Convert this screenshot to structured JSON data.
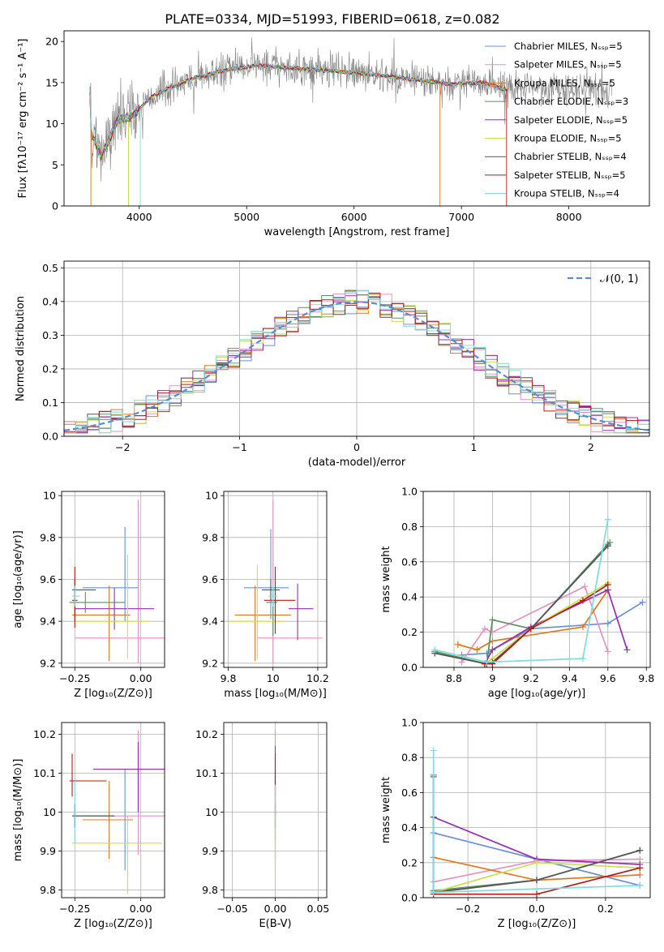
{
  "colors": [
    "#6a8fd8",
    "#e791c2",
    "#e2781e",
    "#5d8f62",
    "#9a2bb3",
    "#c8e04a",
    "#555555",
    "#b51a1a",
    "#7fdcdc"
  ],
  "chart_data": [
    {
      "id": "spectrum",
      "type": "line",
      "title": "PLATE=0334, MJD=51993, FIBERID=0618, z=0.082",
      "xlabel": "wavelength [Angstrom, rest frame]",
      "ylabel": "Flux [fλ10⁻¹⁷ erg cm⁻² s⁻¹ A⁻¹]",
      "xlim": [
        3300,
        8750
      ],
      "ylim": [
        0,
        21.3
      ],
      "xticks": [
        4000,
        5000,
        6000,
        7000,
        8000
      ],
      "yticks": [
        0,
        5,
        10,
        15,
        20
      ],
      "grid": false,
      "legend_position": "top-right",
      "legend": [
        "Chabrier MILES, Nₛₛₚ=5",
        "Salpeter MILES, Nₛₛₚ=5",
        "Kroupa MILES, Nₛₛₚ=5",
        "Chabrier ELODIE, Nₛₛₚ=3",
        "Salpeter ELODIE, Nₛₛₚ=5",
        "Kroupa ELODIE, Nₛₛₚ=5",
        "Chabrier STELIB, Nₛₛₚ=4",
        "Salpeter STELIB, Nₛₛₚ=5",
        "Kroupa STELIB, Nₛₛₚ=4"
      ],
      "continuum": {
        "x": [
          3550,
          3650,
          3800,
          3950,
          4100,
          4300,
          4500,
          4800,
          5100,
          5400,
          5700,
          6000,
          6300,
          6600,
          6900,
          7200,
          7400
        ],
        "y": [
          9,
          6,
          10.5,
          11,
          13.2,
          14.5,
          15.5,
          16.5,
          17.1,
          16.8,
          16.5,
          16.2,
          15.8,
          15.3,
          14.8,
          15,
          14.2
        ]
      }
    },
    {
      "id": "residual_hist",
      "type": "histogram",
      "xlabel": "(data-model)/error",
      "ylabel": "Normed distribution",
      "xlim": [
        -2.5,
        2.5
      ],
      "ylim": [
        0,
        0.52
      ],
      "xticks": [
        -2,
        -1,
        0,
        1,
        2
      ],
      "yticks": [
        0,
        0.1,
        0.2,
        0.3,
        0.4,
        0.5
      ],
      "grid": true,
      "legend": [
        "𝒩(0, 1)"
      ],
      "legend_position": "top-right",
      "bin_width": 0.1
    },
    {
      "id": "age_vs_Z",
      "type": "errorbar",
      "xlabel": "Z [log₁₀(Z/Z⊙)]",
      "ylabel": "age  [log₁₀(age/yr)]",
      "xlim": [
        -0.3,
        0.09
      ],
      "ylim": [
        9.18,
        10.02
      ],
      "xticks": [
        -0.25,
        0.0
      ],
      "xticklabels": [
        "−0.25",
        "0.00"
      ],
      "yticks": [
        9.2,
        9.4,
        9.6,
        9.8,
        10.0
      ],
      "grid": true,
      "points": [
        {
          "x": -0.06,
          "y": 9.56,
          "xerr": [
            0.16,
            0.05
          ],
          "yerr": [
            0.16,
            0.29
          ]
        },
        {
          "x": -0.01,
          "y": 9.32,
          "xerr": [
            0.24,
            0.15
          ],
          "yerr": [
            0.12,
            0.66
          ]
        },
        {
          "x": -0.12,
          "y": 9.43,
          "xerr": [
            0.14,
            0.08
          ],
          "yerr": [
            0.22,
            0.14
          ]
        },
        {
          "x": -0.21,
          "y": 9.49,
          "xerr": [
            0.06,
            0.15
          ],
          "yerr": [
            0.05,
            0.05
          ]
        },
        {
          "x": -0.1,
          "y": 9.46,
          "xerr": [
            0.15,
            0.15
          ],
          "yerr": [
            0.1,
            0.1
          ]
        },
        {
          "x": -0.05,
          "y": 9.4,
          "xerr": [
            0.2,
            0.08
          ],
          "yerr": [
            0.18,
            0.32
          ]
        },
        {
          "x": -0.25,
          "y": 9.55,
          "xerr": [
            0.01,
            0.08
          ],
          "yerr": [
            0.15,
            0.05
          ]
        },
        {
          "x": -0.25,
          "y": 9.5,
          "xerr": [
            0.01,
            0.01
          ],
          "yerr": [
            0.13,
            0.16
          ]
        },
        {
          "x": -0.25,
          "y": 9.52,
          "xerr": [
            0.01,
            0.02
          ],
          "yerr": [
            0.05,
            0.05
          ]
        }
      ]
    },
    {
      "id": "age_vs_mass",
      "type": "errorbar",
      "xlabel": "mass [log₁₀(M/M⊙)]",
      "ylabel": "",
      "xlim": [
        9.78,
        10.24
      ],
      "ylim": [
        9.18,
        10.02
      ],
      "xticks": [
        9.8,
        10.0,
        10.2
      ],
      "yticks": [
        9.2,
        9.4,
        9.6,
        9.8,
        10.0
      ],
      "grid": true,
      "points": [
        {
          "x": 9.99,
          "y": 9.56,
          "xerr": [
            0.12,
            0.08
          ],
          "yerr": [
            0.15,
            0.28
          ]
        },
        {
          "x": 10.0,
          "y": 9.32,
          "xerr": [
            0.07,
            0.22
          ],
          "yerr": [
            0.12,
            0.66
          ]
        },
        {
          "x": 9.92,
          "y": 9.43,
          "xerr": [
            0.09,
            0.16
          ],
          "yerr": [
            0.22,
            0.14
          ]
        },
        {
          "x": 10.0,
          "y": 9.49,
          "xerr": [
            0.03,
            0.02
          ],
          "yerr": [
            0.16,
            0.07
          ]
        },
        {
          "x": 10.11,
          "y": 9.46,
          "xerr": [
            0.04,
            0.07
          ],
          "yerr": [
            0.15,
            0.12
          ]
        },
        {
          "x": 9.93,
          "y": 9.4,
          "xerr": [
            0.13,
            0.12
          ],
          "yerr": [
            0.18,
            0.27
          ]
        },
        {
          "x": 9.99,
          "y": 9.55,
          "xerr": [
            0.04,
            0.04
          ],
          "yerr": [
            0.05,
            0.05
          ]
        },
        {
          "x": 10.01,
          "y": 9.5,
          "xerr": [
            0.05,
            0.09
          ],
          "yerr": [
            0.16,
            0.16
          ]
        },
        {
          "x": 10.0,
          "y": 9.52,
          "xerr": [
            0.02,
            0.02
          ],
          "yerr": [
            0.05,
            0.05
          ]
        }
      ]
    },
    {
      "id": "weight_vs_age",
      "type": "line",
      "xlabel": "age  [log₁₀(age/yr)]",
      "ylabel": "mass weight",
      "xlim": [
        8.64,
        9.82
      ],
      "ylim": [
        0,
        1.0
      ],
      "xticks": [
        8.8,
        9.0,
        9.2,
        9.4,
        9.6,
        9.8
      ],
      "yticks": [
        0,
        0.2,
        0.4,
        0.6,
        0.8,
        1.0
      ],
      "grid": true,
      "series": [
        {
          "x": [
            8.84,
            8.97,
            9.2,
            9.6,
            9.78
          ],
          "y": [
            0.07,
            0.08,
            0.22,
            0.25,
            0.37
          ]
        },
        {
          "x": [
            8.84,
            8.96,
            9.0,
            9.48,
            9.6
          ],
          "y": [
            0.03,
            0.22,
            0.2,
            0.46,
            0.09
          ]
        },
        {
          "x": [
            8.82,
            8.92,
            9.0,
            9.47,
            9.6
          ],
          "y": [
            0.13,
            0.1,
            0.15,
            0.23,
            0.44
          ]
        },
        {
          "x": [
            8.7,
            8.97,
            9.0,
            9.2,
            9.6,
            9.61
          ],
          "y": [
            0.09,
            0.02,
            0.27,
            0.22,
            0.7,
            0.71
          ]
        },
        {
          "x": [
            8.96,
            9.0,
            9.2,
            9.6,
            9.7
          ],
          "y": [
            0.02,
            0.1,
            0.23,
            0.44,
            0.1
          ]
        },
        {
          "x": [
            8.96,
            9.0,
            9.2,
            9.6
          ],
          "y": [
            0.02,
            0.05,
            0.22,
            0.48
          ]
        },
        {
          "x": [
            8.7,
            8.97,
            9.0,
            9.2,
            9.6
          ],
          "y": [
            0.08,
            0.02,
            0.03,
            0.22,
            0.69
          ]
        },
        {
          "x": [
            8.96,
            9.0,
            9.2,
            9.47,
            9.6
          ],
          "y": [
            0.02,
            0.02,
            0.22,
            0.38,
            0.47
          ]
        },
        {
          "x": [
            8.7,
            8.97,
            9.47,
            9.6
          ],
          "y": [
            0.1,
            0.03,
            0.05,
            0.84
          ]
        }
      ]
    },
    {
      "id": "mass_vs_Z",
      "type": "errorbar",
      "xlabel": "Z [log₁₀(Z/Z⊙)]",
      "ylabel": "mass [log₁₀(M/M⊙)]",
      "xlim": [
        -0.3,
        0.09
      ],
      "ylim": [
        9.78,
        10.23
      ],
      "xticks": [
        -0.25,
        0.0
      ],
      "xticklabels": [
        "−0.25",
        "0.00"
      ],
      "yticks": [
        9.8,
        9.9,
        10.0,
        10.1,
        10.2
      ],
      "grid": true,
      "points": [
        {
          "x": -0.06,
          "y": 9.98,
          "xerr": [
            0.16,
            0.03
          ],
          "yerr": [
            0.13,
            0.13
          ]
        },
        {
          "x": -0.01,
          "y": 9.99,
          "xerr": [
            0.17,
            0.12
          ],
          "yerr": [
            0.1,
            0.22
          ]
        },
        {
          "x": -0.12,
          "y": 9.98,
          "xerr": [
            0.1,
            0.09
          ],
          "yerr": [
            0.1,
            0.1
          ]
        },
        {
          "x": -0.25,
          "y": 9.99,
          "xerr": [
            0.01,
            0.15
          ],
          "yerr": [
            0.03,
            0.03
          ]
        },
        {
          "x": -0.01,
          "y": 10.11,
          "xerr": [
            0.17,
            0.11
          ],
          "yerr": [
            0.11,
            0.07
          ]
        },
        {
          "x": -0.05,
          "y": 9.92,
          "xerr": [
            0.21,
            0.13
          ],
          "yerr": [
            0.13,
            0.07
          ]
        },
        {
          "x": -0.25,
          "y": 9.99,
          "xerr": [
            0.01,
            0.15
          ],
          "yerr": [
            0.03,
            0.03
          ]
        },
        {
          "x": -0.26,
          "y": 10.08,
          "xerr": [
            0.01,
            0.13
          ],
          "yerr": [
            0.04,
            0.07
          ]
        },
        {
          "x": -0.25,
          "y": 10.0,
          "xerr": [
            0.01,
            0.04
          ],
          "yerr": [
            0.08,
            0.08
          ]
        }
      ]
    },
    {
      "id": "mass_vs_ebv",
      "type": "errorbar",
      "xlabel": "E(B-V)",
      "ylabel": "",
      "xlim": [
        -0.06,
        0.06
      ],
      "ylim": [
        9.78,
        10.23
      ],
      "xticks": [
        -0.05,
        0.0,
        0.05
      ],
      "xticklabels": [
        "−0.05",
        "0.00",
        "0.05"
      ],
      "yticks": [
        9.8,
        9.9,
        10.0,
        10.1,
        10.2
      ],
      "grid": true,
      "points": [
        {
          "x": 0,
          "y": 9.98,
          "xerr": [
            0,
            0
          ],
          "yerr": [
            0.13,
            0.13
          ]
        },
        {
          "x": 0,
          "y": 10.0,
          "xerr": [
            0,
            0
          ],
          "yerr": [
            0.12,
            0.21
          ]
        },
        {
          "x": 0,
          "y": 9.98,
          "xerr": [
            0,
            0
          ],
          "yerr": [
            0.1,
            0.1
          ]
        },
        {
          "x": 0,
          "y": 9.99,
          "xerr": [
            0,
            0
          ],
          "yerr": [
            0.03,
            0.03
          ]
        },
        {
          "x": 0,
          "y": 10.1,
          "xerr": [
            0,
            0
          ],
          "yerr": [
            0.11,
            0.07
          ]
        },
        {
          "x": 0,
          "y": 9.92,
          "xerr": [
            0,
            0
          ],
          "yerr": [
            0.07,
            0.07
          ]
        },
        {
          "x": 0,
          "y": 9.99,
          "xerr": [
            0,
            0
          ],
          "yerr": [
            0.03,
            0.03
          ]
        },
        {
          "x": 0,
          "y": 10.08,
          "xerr": [
            0,
            0
          ],
          "yerr": [
            0.04,
            0.07
          ]
        },
        {
          "x": 0,
          "y": 10.0,
          "xerr": [
            0,
            0
          ],
          "yerr": [
            0.07,
            0.07
          ]
        }
      ]
    },
    {
      "id": "weight_vs_Z",
      "type": "line",
      "xlabel": "Z [log₁₀(Z/Z⊙)]",
      "ylabel": "mass weight",
      "xlim": [
        -0.33,
        0.33
      ],
      "ylim": [
        0,
        1.0
      ],
      "xticks": [
        -0.2,
        0.0,
        0.2
      ],
      "xticklabels": [
        "−0.2",
        "0.0",
        "0.2"
      ],
      "yticks": [
        0,
        0.2,
        0.4,
        0.6,
        0.8,
        1.0
      ],
      "grid": true,
      "series": [
        {
          "x": [
            -0.3,
            0.0,
            0.3
          ],
          "y": [
            0.37,
            0.22,
            0.07
          ]
        },
        {
          "x": [
            -0.3,
            0.0,
            0.3
          ],
          "y": [
            0.09,
            0.21,
            0.22
          ]
        },
        {
          "x": [
            -0.3,
            0.0,
            0.3
          ],
          "y": [
            0.23,
            0.1,
            0.13
          ]
        },
        {
          "x": [
            -0.3,
            -0.3,
            0.0,
            0.3
          ],
          "y": [
            0.7,
            0.04,
            0.1,
            0.27
          ]
        },
        {
          "x": [
            -0.3,
            0.0,
            0.3
          ],
          "y": [
            0.46,
            0.22,
            0.19
          ]
        },
        {
          "x": [
            -0.3,
            0.0,
            0.3
          ],
          "y": [
            0.03,
            0.2,
            0.17
          ]
        },
        {
          "x": [
            -0.3,
            -0.3,
            0.0,
            0.3
          ],
          "y": [
            0.69,
            0.03,
            0.1,
            0.27
          ]
        },
        {
          "x": [
            -0.3,
            0.0,
            0.3
          ],
          "y": [
            0.02,
            0.02,
            0.17
          ]
        },
        {
          "x": [
            -0.3,
            -0.3,
            0.3
          ],
          "y": [
            0.84,
            0.03,
            0.07
          ]
        }
      ]
    }
  ]
}
